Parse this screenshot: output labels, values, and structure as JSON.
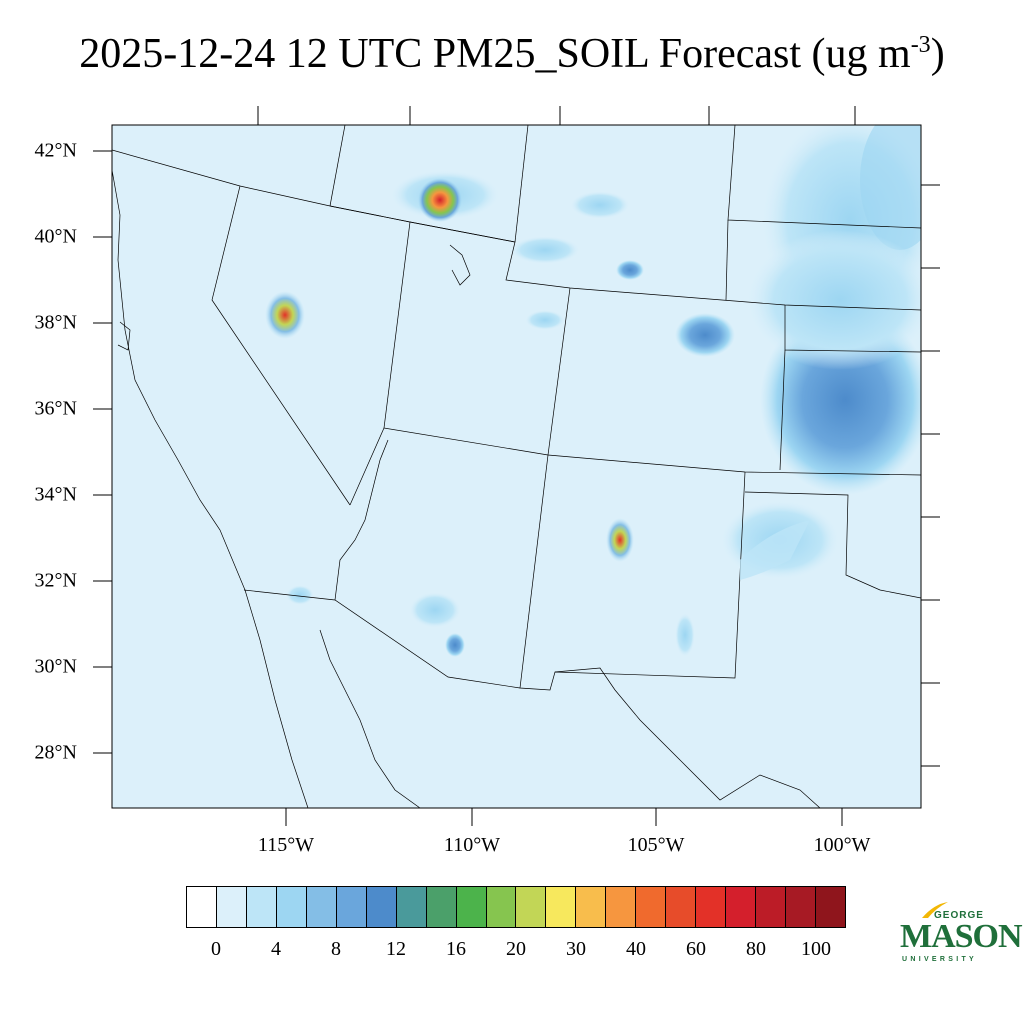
{
  "title": {
    "main": "2025-12-24 12 UTC PM25_SOIL Forecast (ug m",
    "unit_exponent": "-3",
    "close": ")"
  },
  "map": {
    "background_color": "#dcf0fa",
    "lat_labels": [
      "42°N",
      "40°N",
      "38°N",
      "36°N",
      "34°N",
      "32°N",
      "30°N",
      "28°N"
    ],
    "lon_labels": [
      "115°W",
      "110°W",
      "105°W",
      "100°W"
    ]
  },
  "colorbar": {
    "colors": [
      "#ffffff",
      "#dcf0fa",
      "#bde5f7",
      "#9dd6f2",
      "#84bee6",
      "#6aa6dc",
      "#4d8bcb",
      "#4a9a9b",
      "#4ba06a",
      "#4cb34b",
      "#86c54f",
      "#c2d656",
      "#f7e85d",
      "#f8bd4c",
      "#f6963f",
      "#f06a2d",
      "#e74c2a",
      "#e33128",
      "#d41f2c",
      "#bc1c27",
      "#a71a24",
      "#8f151c"
    ],
    "labels": [
      "0",
      "4",
      "8",
      "12",
      "16",
      "20",
      "30",
      "40",
      "60",
      "80",
      "100"
    ]
  },
  "logo": {
    "top": "GEORGE",
    "main": "MASON",
    "bottom": "UNIVERSITY"
  }
}
